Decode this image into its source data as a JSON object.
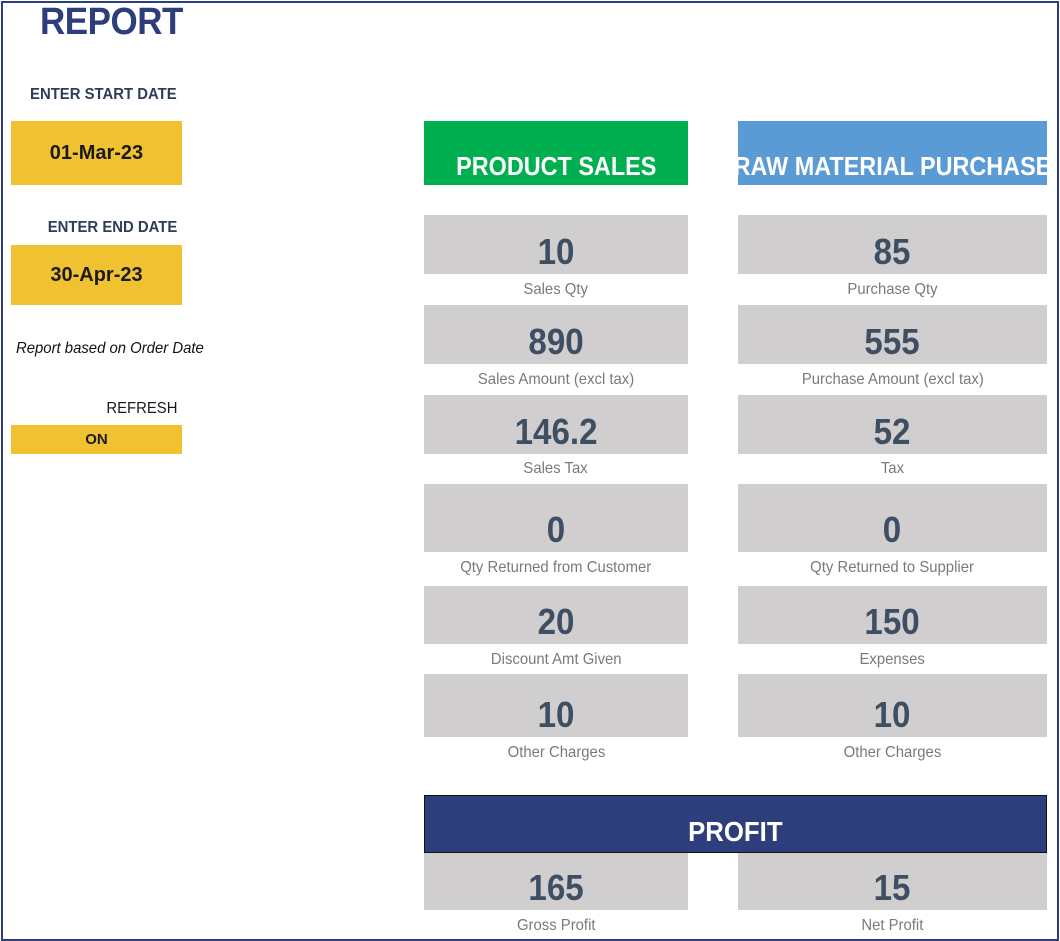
{
  "title": "REPORT",
  "start_date": {
    "label": "ENTER START DATE",
    "value": "01-Mar-23"
  },
  "end_date": {
    "label": "ENTER END DATE",
    "value": "30-Apr-23"
  },
  "note": "Report based on Order Date",
  "refresh": {
    "label": "REFRESH",
    "value": "ON"
  },
  "product_sales": {
    "heading": "PRODUCT SALES",
    "color": "#00b050",
    "tiles": [
      {
        "value": "10",
        "caption": "Sales Qty"
      },
      {
        "value": "890",
        "caption": "Sales Amount (excl tax)"
      },
      {
        "value": "146.2",
        "caption": "Sales Tax"
      },
      {
        "value": "0",
        "caption": "Qty Returned from Customer"
      },
      {
        "value": "20",
        "caption": "Discount Amt Given"
      },
      {
        "value": "10",
        "caption": "Other Charges"
      }
    ]
  },
  "raw_material_purchase": {
    "heading": "RAW MATERIAL PURCHASE",
    "color": "#5b9bd5",
    "tiles": [
      {
        "value": "85",
        "caption": "Purchase Qty"
      },
      {
        "value": "555",
        "caption": "Purchase Amount (excl tax)"
      },
      {
        "value": "52",
        "caption": "Tax"
      },
      {
        "value": "0",
        "caption": "Qty Returned to Supplier"
      },
      {
        "value": "150",
        "caption": "Expenses"
      },
      {
        "value": "10",
        "caption": "Other Charges"
      }
    ]
  },
  "profit": {
    "heading": "PROFIT",
    "color": "#2e3d7c",
    "tiles": [
      {
        "value": "165",
        "caption": "Gross Profit"
      },
      {
        "value": "15",
        "caption": "Net Profit"
      }
    ]
  }
}
